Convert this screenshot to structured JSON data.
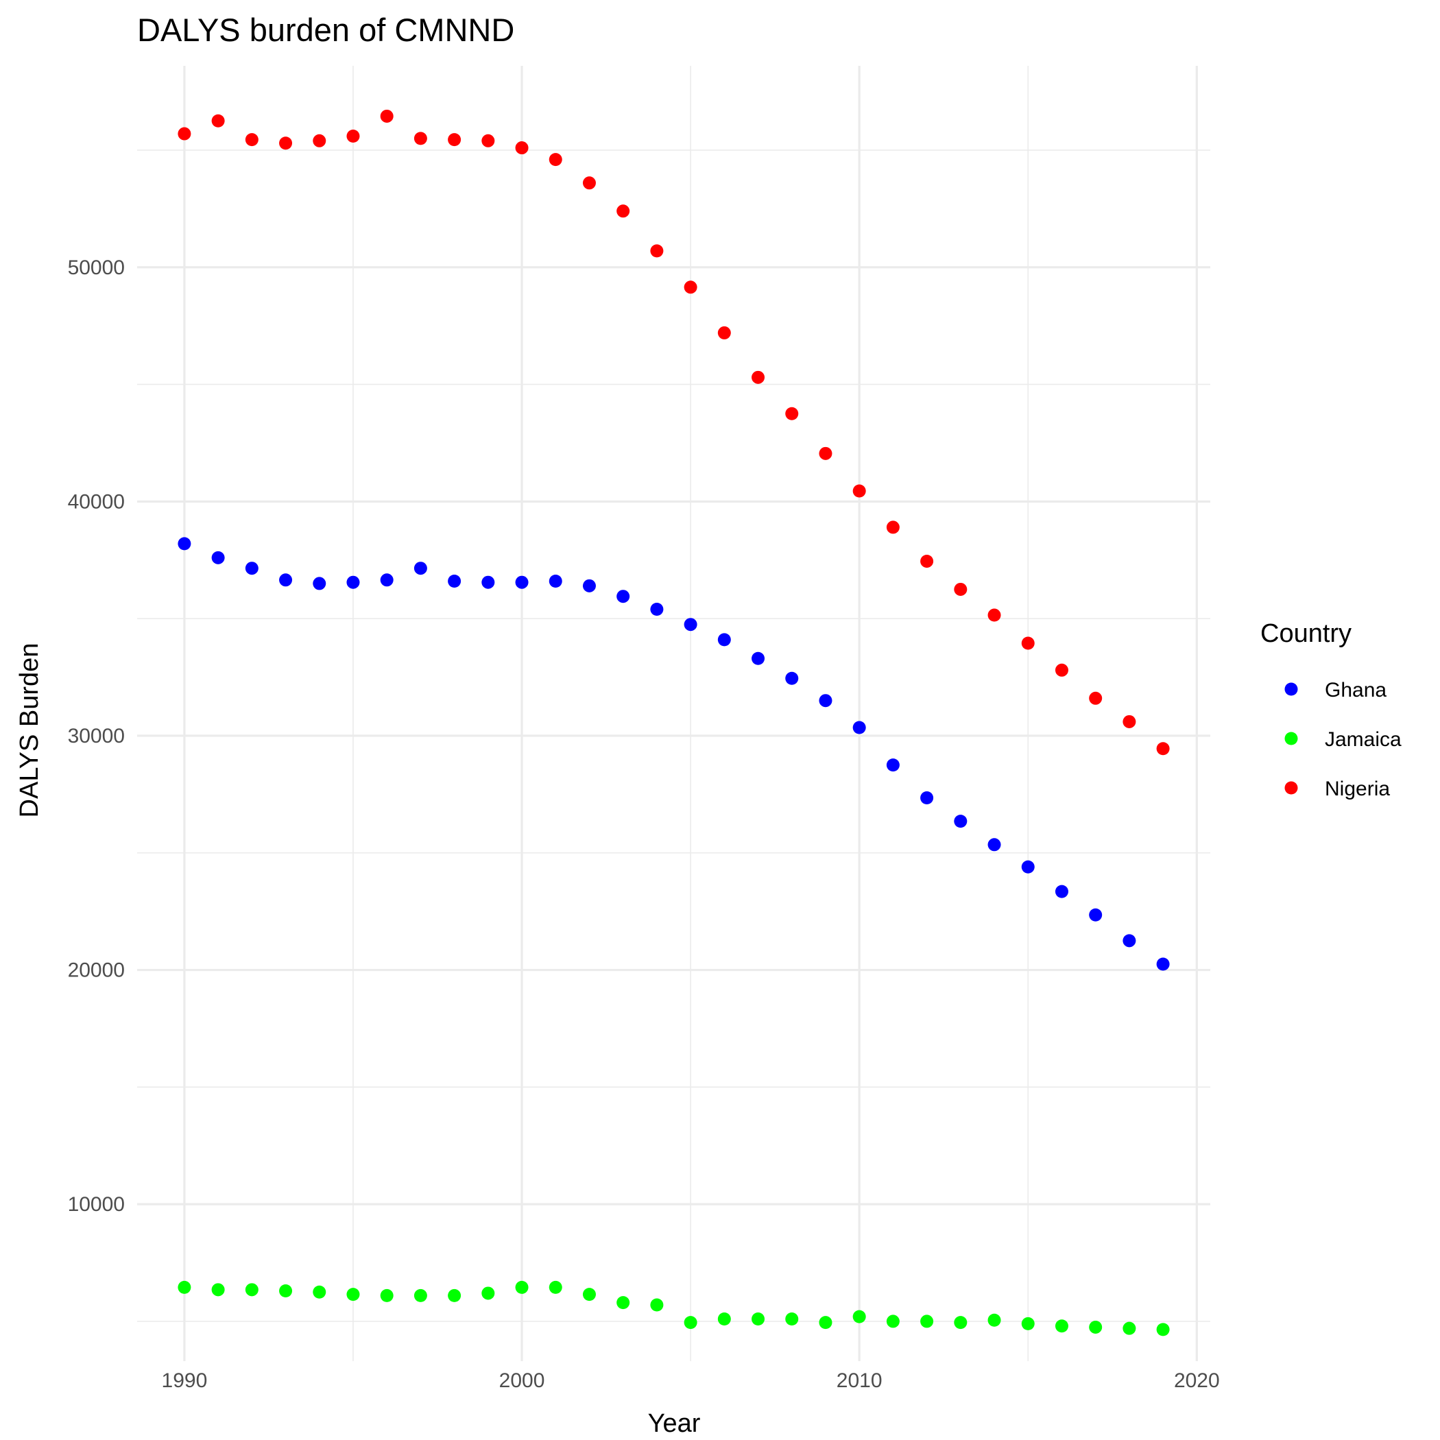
{
  "chart_data": {
    "type": "scatter",
    "title": "DALYS burden of CMNND",
    "xlabel": "Year",
    "ylabel": "DALYS Burden",
    "xlim": [
      1988.6,
      2020.4
    ],
    "ylim": [
      3300,
      58600
    ],
    "x_ticks": [
      1990,
      2000,
      2010,
      2020
    ],
    "y_ticks": [
      10000,
      20000,
      30000,
      40000,
      50000
    ],
    "grid": true,
    "legend": {
      "title": "Country",
      "position": "right"
    },
    "x": [
      1990,
      1991,
      1992,
      1993,
      1994,
      1995,
      1996,
      1997,
      1998,
      1999,
      2000,
      2001,
      2002,
      2003,
      2004,
      2005,
      2006,
      2007,
      2008,
      2009,
      2010,
      2011,
      2012,
      2013,
      2014,
      2015,
      2016,
      2017,
      2018,
      2019
    ],
    "series": [
      {
        "name": "Ghana",
        "color": "#0000ff",
        "values": [
          38200,
          37600,
          37150,
          36650,
          36500,
          36550,
          36650,
          37150,
          36600,
          36550,
          36550,
          36600,
          36400,
          35950,
          35400,
          34750,
          34100,
          33300,
          32450,
          31500,
          30350,
          28750,
          27350,
          26350,
          25350,
          24400,
          23350,
          22350,
          21250,
          20250
        ]
      },
      {
        "name": "Jamaica",
        "color": "#00ff00",
        "values": [
          6450,
          6350,
          6350,
          6300,
          6250,
          6150,
          6100,
          6100,
          6100,
          6200,
          6450,
          6450,
          6150,
          5800,
          5700,
          4950,
          5100,
          5100,
          5100,
          4950,
          5200,
          5000,
          5000,
          4950,
          5050,
          4900,
          4800,
          4750,
          4700,
          4650
        ]
      },
      {
        "name": "Nigeria",
        "color": "#ff0000",
        "values": [
          55700,
          56250,
          55450,
          55300,
          55400,
          55600,
          56450,
          55500,
          55450,
          55400,
          55100,
          54600,
          53600,
          52400,
          50700,
          49150,
          47200,
          45300,
          43750,
          42050,
          40450,
          38900,
          37450,
          36250,
          35150,
          33950,
          32800,
          31600,
          30600,
          29450
        ]
      }
    ]
  }
}
